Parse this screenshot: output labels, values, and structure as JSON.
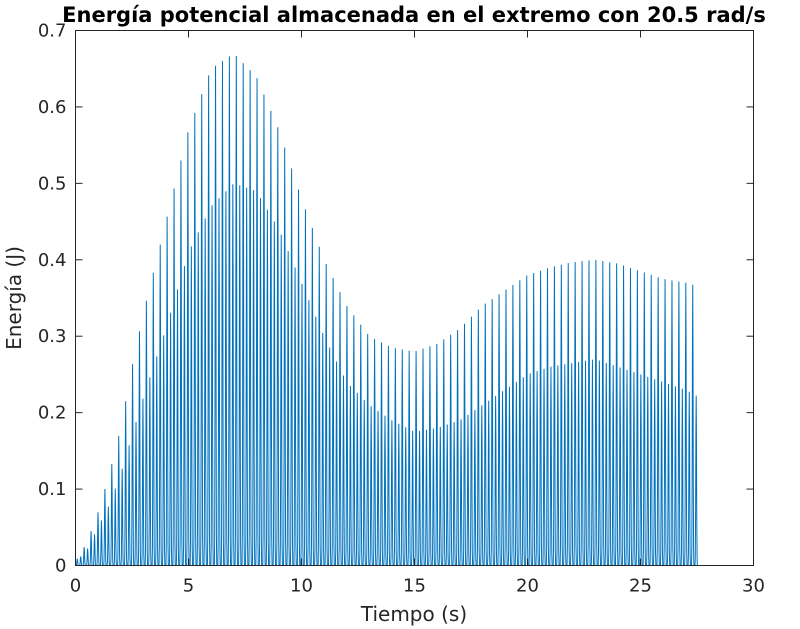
{
  "chart_data": {
    "type": "line",
    "title": "Energía potencial almacenada en el extremo con 20.5 rad/s",
    "xlabel": "Tiempo (s)",
    "ylabel": "Energía (J)",
    "xlim": [
      0,
      30
    ],
    "ylim": [
      0,
      0.7
    ],
    "xticks": [
      0,
      5,
      10,
      15,
      20,
      25,
      30
    ],
    "xtick_labels": [
      "0",
      "5",
      "10",
      "15",
      "20",
      "25",
      "30"
    ],
    "yticks": [
      0,
      0.1,
      0.2,
      0.3,
      0.4,
      0.5,
      0.6,
      0.7
    ],
    "ytick_labels": [
      "0",
      "0.1",
      "0.2",
      "0.3",
      "0.4",
      "0.5",
      "0.6",
      "0.7"
    ],
    "grid": false,
    "line_color": "#0072BD",
    "oscillation_period_s": 0.153,
    "x_end": 27.6,
    "envelope_outer": {
      "t": [
        0,
        0.5,
        1,
        1.5,
        2,
        2.5,
        3,
        4,
        5,
        6,
        7,
        8,
        9,
        10,
        11,
        12,
        13,
        14,
        15,
        16,
        17,
        18,
        19,
        20,
        21,
        22,
        23,
        24,
        25,
        26,
        27,
        27.6
      ],
      "E": [
        0.005,
        0.03,
        0.07,
        0.12,
        0.18,
        0.26,
        0.33,
        0.45,
        0.57,
        0.65,
        0.67,
        0.64,
        0.57,
        0.48,
        0.4,
        0.34,
        0.3,
        0.285,
        0.28,
        0.29,
        0.31,
        0.34,
        0.36,
        0.38,
        0.39,
        0.397,
        0.4,
        0.395,
        0.385,
        0.375,
        0.37,
        0.365
      ]
    },
    "envelope_inner": {
      "t": [
        0,
        0.5,
        1,
        1.5,
        2,
        2.5,
        3,
        4,
        5,
        6,
        7,
        8,
        9,
        10,
        11,
        12,
        13,
        14,
        15,
        16,
        17,
        18,
        19,
        20,
        21,
        22,
        23,
        24,
        25,
        26,
        27,
        27.6
      ],
      "E": [
        0.005,
        0.02,
        0.05,
        0.08,
        0.12,
        0.17,
        0.22,
        0.31,
        0.41,
        0.47,
        0.5,
        0.49,
        0.44,
        0.37,
        0.3,
        0.24,
        0.21,
        0.19,
        0.175,
        0.18,
        0.19,
        0.21,
        0.23,
        0.25,
        0.26,
        0.265,
        0.27,
        0.26,
        0.25,
        0.24,
        0.23,
        0.22
      ]
    }
  }
}
